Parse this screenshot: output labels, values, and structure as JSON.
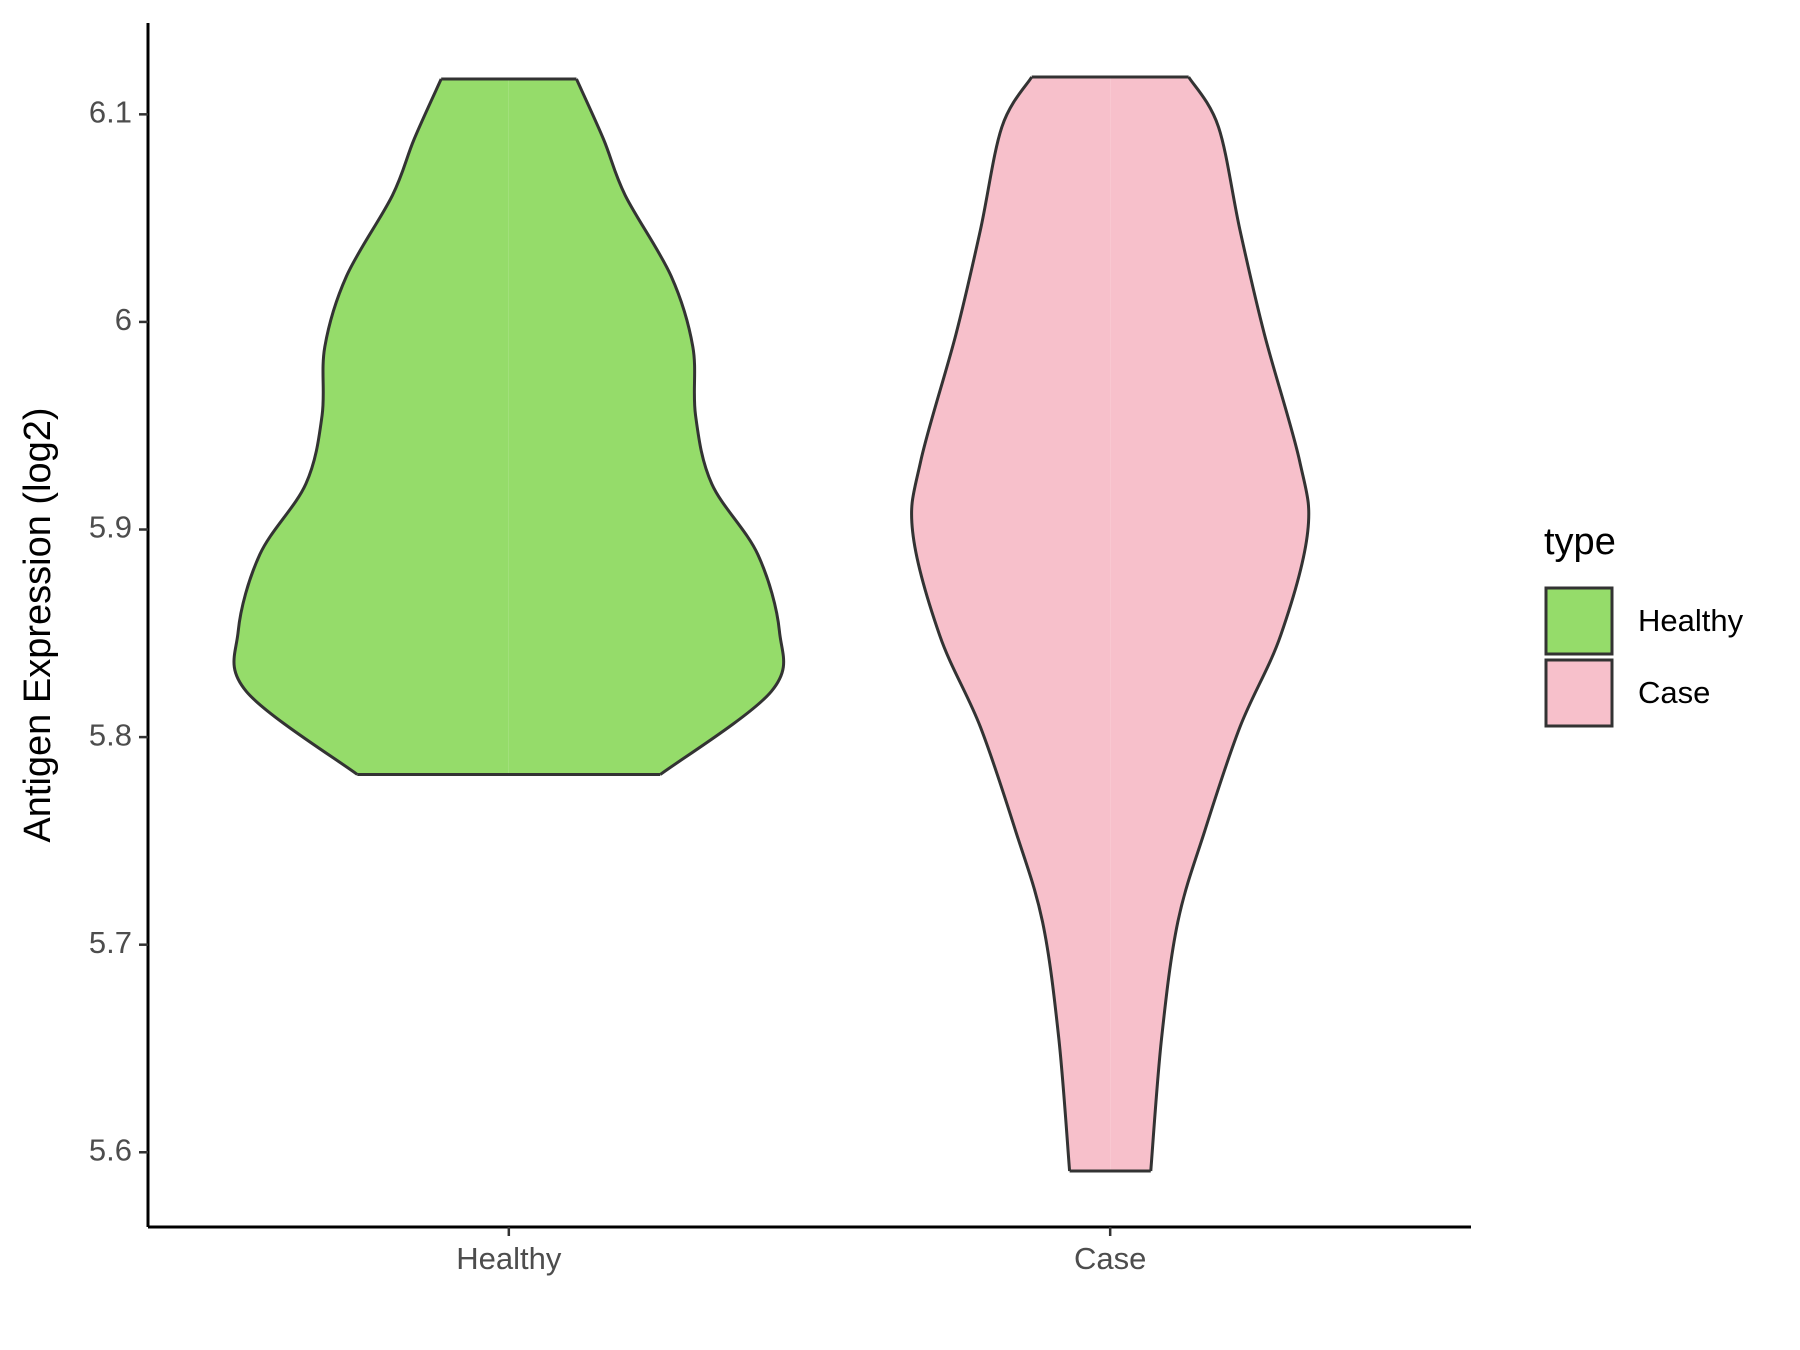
{
  "chart_data": {
    "type": "violin",
    "y_label": "Antigen Expression (log2)",
    "categories": [
      "Healthy",
      "Case"
    ],
    "series": [
      {
        "name": "Healthy",
        "color": "#95dc6a",
        "y": [
          5.782,
          5.822,
          5.851,
          5.888,
          5.922,
          5.955,
          5.988,
          6.022,
          6.061,
          6.088,
          6.117
        ],
        "density": [
          0.56,
          0.97,
          1.0,
          0.92,
          0.75,
          0.69,
          0.68,
          0.6,
          0.43,
          0.35,
          0.25
        ]
      },
      {
        "name": "Case",
        "color": "#f7c0cb",
        "y": [
          5.591,
          5.655,
          5.711,
          5.755,
          5.805,
          5.849,
          5.899,
          5.933,
          5.994,
          6.044,
          6.094,
          6.118
        ],
        "density": [
          0.15,
          0.19,
          0.25,
          0.35,
          0.48,
          0.63,
          0.73,
          0.7,
          0.57,
          0.48,
          0.4,
          0.29
        ]
      }
    ],
    "ylim": [
      5.564,
      6.144
    ],
    "yticks": [
      5.6,
      5.7,
      5.8,
      5.9,
      6.0,
      6.1
    ],
    "legend_title": "type",
    "legend_position": "right",
    "grid": false
  }
}
